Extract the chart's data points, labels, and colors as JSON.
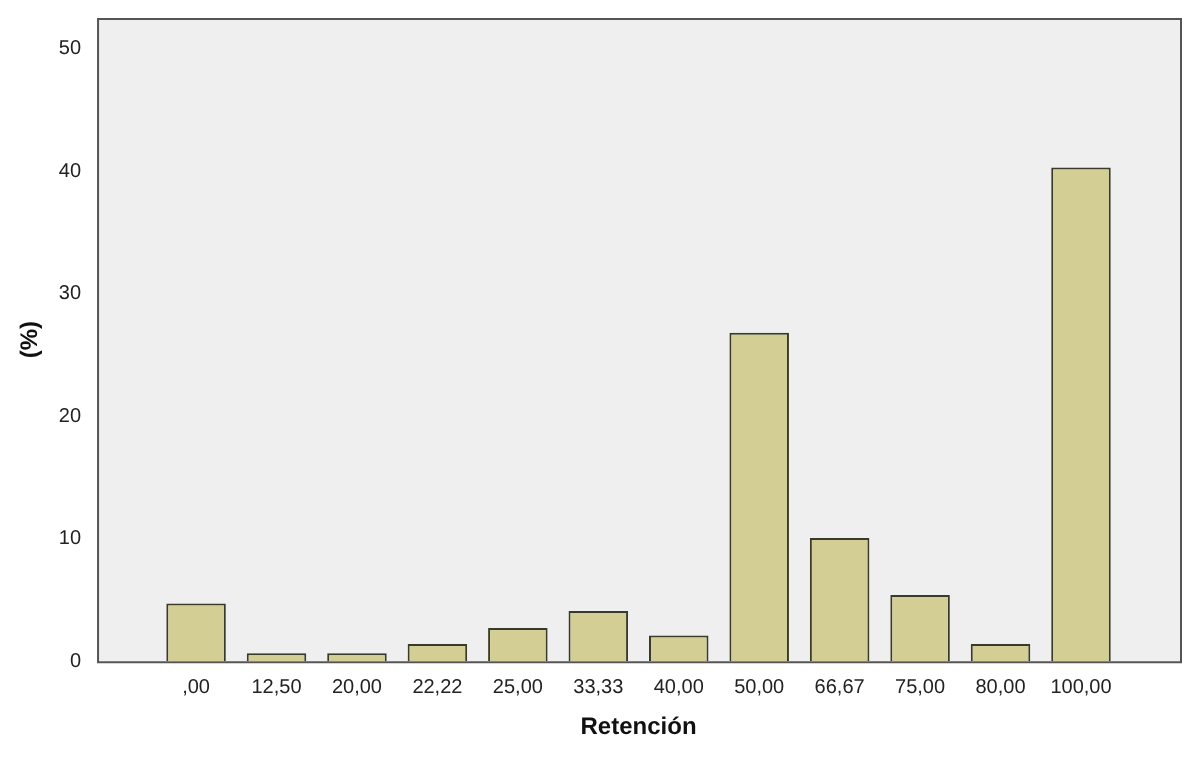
{
  "chart_data": {
    "type": "bar",
    "xlabel": "Retención",
    "ylabel": "(%)",
    "categories": [
      ",00",
      "12,50",
      "20,00",
      "22,22",
      "25,00",
      "33,33",
      "40,00",
      "50,00",
      "66,67",
      "75,00",
      "80,00",
      "100,00"
    ],
    "values": [
      4.7,
      0.65,
      0.65,
      1.4,
      2.7,
      4.1,
      2.1,
      26.8,
      10.05,
      5.4,
      1.4,
      40.3
    ],
    "color": "#d3cf94",
    "ylim": [
      0,
      52.5
    ],
    "yticks": [
      0,
      10,
      20,
      30,
      40,
      50
    ],
    "grid": false,
    "legend": false
  }
}
